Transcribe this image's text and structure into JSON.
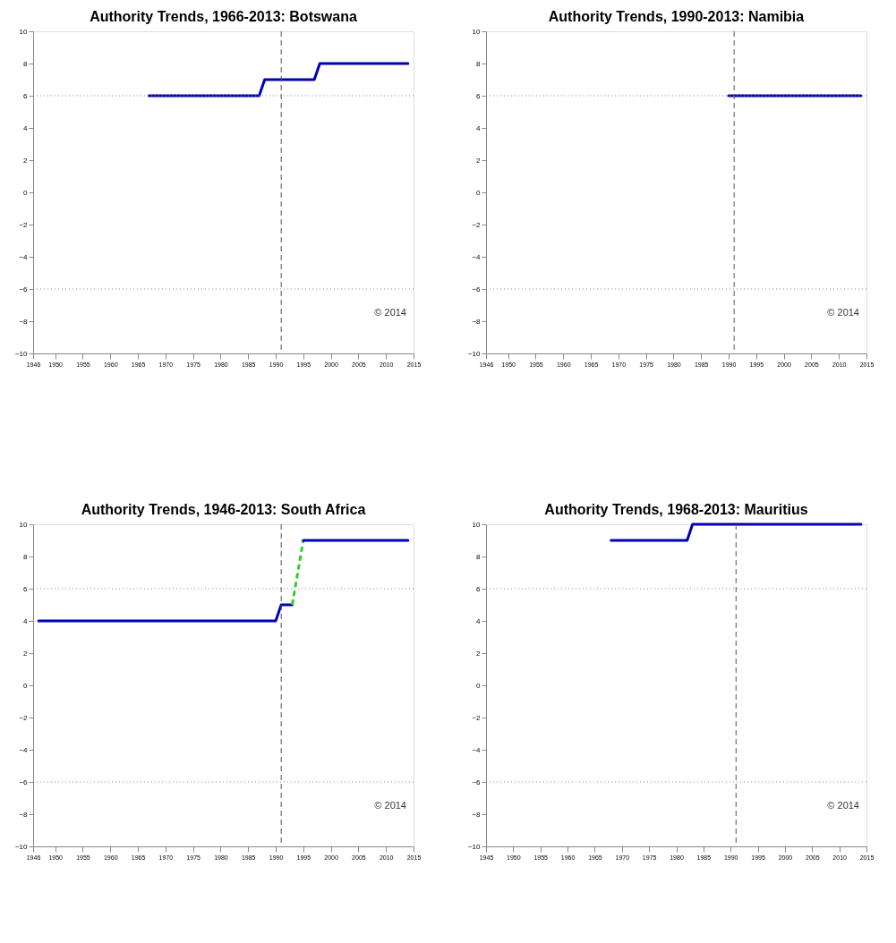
{
  "chart_data": [
    {
      "type": "line",
      "title": "Authority Trends, 1966-2013: Botswana",
      "xlim": [
        1946,
        2015
      ],
      "xticks": [
        1946,
        1950,
        1955,
        1960,
        1965,
        1970,
        1975,
        1980,
        1985,
        1990,
        1995,
        2000,
        2005,
        2010,
        2015
      ],
      "ylim": [
        -10,
        10
      ],
      "yticks": [
        -10,
        -8,
        -6,
        -4,
        -2,
        0,
        2,
        4,
        6,
        8,
        10
      ],
      "grid": false,
      "series": [
        {
          "color": "#0000b4",
          "x": [
            1967,
            1987,
            1988,
            1997,
            1998,
            2014
          ],
          "values": [
            6,
            6,
            7,
            7,
            8,
            8
          ]
        }
      ],
      "ref_lines": [
        {
          "axis": "y",
          "value": 6,
          "line_style": "dotted",
          "color": "#888888"
        },
        {
          "axis": "y",
          "value": -6,
          "line_style": "dotted",
          "color": "#888888"
        },
        {
          "axis": "x",
          "value": 1991,
          "line_style": "dashed",
          "color": "#555555"
        }
      ],
      "annotations": [
        "© 2014"
      ]
    },
    {
      "type": "line",
      "title": "Authority Trends, 1990-2013: Namibia",
      "xlim": [
        1946,
        2015
      ],
      "xticks": [
        1946,
        1950,
        1955,
        1960,
        1965,
        1970,
        1975,
        1980,
        1985,
        1990,
        1995,
        2000,
        2005,
        2010,
        2015
      ],
      "ylim": [
        -10,
        10
      ],
      "yticks": [
        -10,
        -8,
        -6,
        -4,
        -2,
        0,
        2,
        4,
        6,
        8,
        10
      ],
      "grid": false,
      "series": [
        {
          "color": "#0000b4",
          "x": [
            1990,
            2014
          ],
          "values": [
            6,
            6
          ]
        }
      ],
      "ref_lines": [
        {
          "axis": "y",
          "value": 6,
          "line_style": "dotted",
          "color": "#888888"
        },
        {
          "axis": "y",
          "value": -6,
          "line_style": "dotted",
          "color": "#888888"
        },
        {
          "axis": "x",
          "value": 1991,
          "line_style": "dashed",
          "color": "#555555"
        }
      ],
      "annotations": [
        "© 2014"
      ]
    },
    {
      "type": "line",
      "title": "Authority Trends, 1946-2013: South Africa",
      "xlim": [
        1946,
        2015
      ],
      "xticks": [
        1946,
        1950,
        1955,
        1960,
        1965,
        1970,
        1975,
        1980,
        1985,
        1990,
        1995,
        2000,
        2005,
        2010,
        2015
      ],
      "ylim": [
        -10,
        10
      ],
      "yticks": [
        -10,
        -8,
        -6,
        -4,
        -2,
        0,
        2,
        4,
        6,
        8,
        10
      ],
      "grid": false,
      "series": [
        {
          "color": "#0000b4",
          "x": [
            1947,
            1990,
            1991,
            1993
          ],
          "values": [
            4,
            4,
            5,
            5
          ]
        },
        {
          "color": "#33cc33",
          "line_style": "dashed",
          "x": [
            1993,
            1995
          ],
          "values": [
            5,
            9
          ]
        },
        {
          "color": "#0000b4",
          "x": [
            1995,
            2014
          ],
          "values": [
            9,
            9
          ]
        }
      ],
      "ref_lines": [
        {
          "axis": "y",
          "value": 6,
          "line_style": "dotted",
          "color": "#888888"
        },
        {
          "axis": "y",
          "value": -6,
          "line_style": "dotted",
          "color": "#888888"
        },
        {
          "axis": "x",
          "value": 1991,
          "line_style": "dashed",
          "color": "#555555"
        }
      ],
      "annotations": [
        "© 2014"
      ]
    },
    {
      "type": "line",
      "title": "Authority Trends, 1968-2013: Mauritius",
      "xlim": [
        1945,
        2015
      ],
      "xticks": [
        1945,
        1950,
        1955,
        1960,
        1965,
        1970,
        1975,
        1980,
        1985,
        1990,
        1995,
        2000,
        2005,
        2010,
        2015
      ],
      "ylim": [
        -10,
        10
      ],
      "yticks": [
        -10,
        -8,
        -6,
        -4,
        -2,
        0,
        2,
        4,
        6,
        8,
        10
      ],
      "grid": false,
      "series": [
        {
          "color": "#0000b4",
          "x": [
            1968,
            1982,
            1983,
            2014
          ],
          "values": [
            9,
            9,
            10,
            10
          ]
        }
      ],
      "ref_lines": [
        {
          "axis": "y",
          "value": 6,
          "line_style": "dotted",
          "color": "#888888"
        },
        {
          "axis": "y",
          "value": -6,
          "line_style": "dotted",
          "color": "#888888"
        },
        {
          "axis": "x",
          "value": 1991,
          "line_style": "dashed",
          "color": "#555555"
        }
      ],
      "annotations": [
        "© 2014"
      ]
    }
  ]
}
